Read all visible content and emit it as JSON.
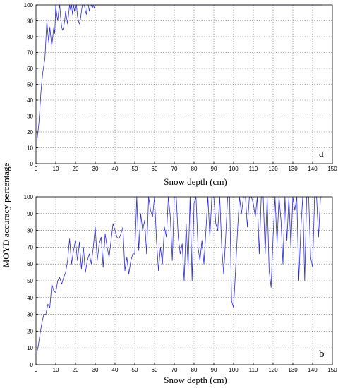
{
  "shared_ylabel": "MOYD accuracy percentage",
  "chart_data": [
    {
      "type": "line",
      "panel_label": "a",
      "xlabel": "Snow depth (cm)",
      "ylabel": "MOYD accuracy percentage",
      "xlim": [
        0,
        150
      ],
      "ylim": [
        0,
        100
      ],
      "xticks": [
        0,
        10,
        20,
        30,
        40,
        50,
        60,
        70,
        80,
        90,
        100,
        110,
        120,
        130,
        140,
        150
      ],
      "yticks": [
        0,
        10,
        20,
        30,
        40,
        50,
        60,
        70,
        80,
        90,
        100
      ],
      "grid": true,
      "series": [
        {
          "color": "#2a2ae0",
          "x": [
            0.5,
            1,
            1.5,
            2,
            2.5,
            3,
            3.5,
            4,
            4.5,
            5,
            5.5,
            6,
            6.5,
            7,
            7.5,
            8,
            8.5,
            9,
            9.5,
            10,
            10.5,
            11,
            11.5,
            12,
            12.5,
            13,
            13.5,
            14,
            14.5,
            15,
            15.5,
            16,
            16.5,
            17,
            17.5,
            18,
            18.5,
            19,
            19.5,
            20,
            20.5,
            21,
            21.5,
            22,
            22.5,
            23,
            23.5,
            24,
            24.5,
            25,
            25.5,
            26,
            26.5,
            27,
            27.5,
            28,
            28.5,
            29,
            29.5,
            30,
            30.5,
            31,
            35,
            40,
            50,
            60,
            70,
            80,
            90,
            100,
            110,
            120,
            130,
            140,
            145
          ],
          "y": [
            15,
            20,
            26,
            35,
            45,
            52,
            58,
            62,
            66,
            78,
            90,
            82,
            76,
            86,
            80,
            74,
            80,
            86,
            82,
            100,
            94,
            90,
            96,
            100,
            92,
            86,
            84,
            86,
            90,
            96,
            92,
            88,
            94,
            100,
            97,
            100,
            94,
            100,
            96,
            100,
            100,
            93,
            90,
            88,
            91,
            96,
            100,
            100,
            100,
            96,
            94,
            100,
            100,
            96,
            100,
            100,
            98,
            100,
            98,
            100,
            100,
            100,
            100,
            100,
            100,
            100,
            100,
            100,
            100,
            100,
            100,
            100,
            100,
            100,
            100
          ]
        }
      ]
    },
    {
      "type": "line",
      "panel_label": "b",
      "xlabel": "Snow depth (cm)",
      "ylabel": "MOYD accuracy percentage",
      "xlim": [
        0,
        150
      ],
      "ylim": [
        0,
        100
      ],
      "xticks": [
        0,
        10,
        20,
        30,
        40,
        50,
        60,
        70,
        80,
        90,
        100,
        110,
        120,
        130,
        140,
        150
      ],
      "yticks": [
        0,
        10,
        20,
        30,
        40,
        50,
        60,
        70,
        80,
        90,
        100
      ],
      "grid": true,
      "series": [
        {
          "color": "#2a2ae0",
          "x": [
            0.5,
            1,
            2,
            3,
            4,
            5,
            6,
            7,
            8,
            9,
            10,
            11,
            12,
            13,
            14,
            15,
            16,
            17,
            18,
            19,
            20,
            21,
            22,
            23,
            24,
            25,
            26,
            27,
            28,
            29,
            30,
            31,
            32,
            33,
            34,
            35,
            36,
            37,
            38,
            39,
            40,
            41,
            42,
            43,
            44,
            45,
            46,
            47,
            48,
            49,
            50,
            51,
            52,
            53,
            54,
            55,
            56,
            57,
            58,
            59,
            60,
            61,
            62,
            63,
            64,
            65,
            66,
            67,
            68,
            69,
            70,
            71,
            72,
            73,
            74,
            75,
            76,
            77,
            78,
            79,
            80,
            81,
            82,
            83,
            84,
            85,
            86,
            87,
            88,
            89,
            90,
            91,
            92,
            93,
            94,
            95,
            96,
            97,
            98,
            99,
            100,
            101,
            102,
            103,
            104,
            105,
            106,
            107,
            108,
            109,
            110,
            111,
            112,
            113,
            114,
            115,
            116,
            117,
            118,
            119,
            120,
            121,
            122,
            123,
            124,
            125,
            126,
            127,
            128,
            129,
            130,
            131,
            132,
            133,
            134,
            135,
            136,
            137,
            138,
            139,
            140,
            141,
            142,
            143,
            144,
            145
          ],
          "y": [
            8,
            10,
            18,
            25,
            30,
            30,
            36,
            34,
            48,
            44,
            43,
            50,
            52,
            48,
            52,
            55,
            62,
            75,
            60,
            68,
            74,
            62,
            73,
            57,
            70,
            55,
            62,
            66,
            60,
            70,
            82,
            62,
            72,
            76,
            58,
            78,
            70,
            64,
            74,
            84,
            80,
            76,
            75,
            78,
            82,
            56,
            64,
            54,
            62,
            66,
            66,
            100,
            68,
            90,
            80,
            86,
            66,
            100,
            92,
            88,
            100,
            74,
            56,
            70,
            60,
            82,
            76,
            100,
            88,
            62,
            100,
            100,
            76,
            66,
            72,
            50,
            84,
            58,
            100,
            50,
            96,
            100,
            70,
            62,
            74,
            60,
            80,
            100,
            76,
            100,
            100,
            84,
            80,
            100,
            70,
            54,
            76,
            100,
            100,
            38,
            34,
            56,
            80,
            100,
            90,
            100,
            100,
            82,
            100,
            100,
            96,
            88,
            100,
            66,
            100,
            100,
            66,
            100,
            56,
            46,
            76,
            100,
            72,
            100,
            86,
            60,
            100,
            74,
            100,
            70,
            100,
            92,
            100,
            50,
            80,
            100,
            50,
            100,
            100,
            64,
            58,
            100,
            100,
            76,
            100,
            100
          ]
        }
      ]
    }
  ]
}
